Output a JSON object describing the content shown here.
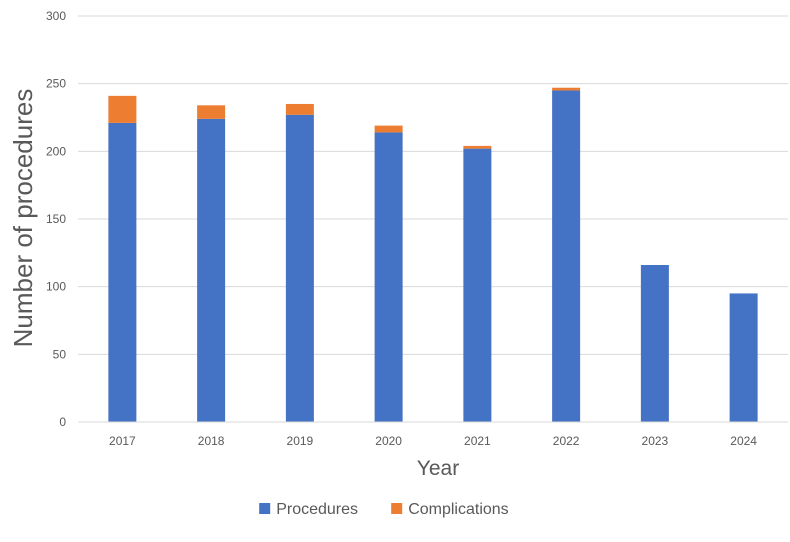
{
  "chart_data": {
    "type": "bar",
    "stacked": true,
    "title": "",
    "xlabel": "Year",
    "ylabel": "Number of procedures",
    "categories": [
      "2017",
      "2018",
      "2019",
      "2020",
      "2021",
      "2022",
      "2023",
      "2024"
    ],
    "series": [
      {
        "name": "Procedures",
        "color": "#4472C4",
        "values": [
          221,
          224,
          227,
          214,
          202,
          245,
          116,
          95
        ]
      },
      {
        "name": "Complications",
        "color": "#ED7D31",
        "values": [
          20,
          10,
          8,
          5,
          2,
          2,
          0,
          0
        ]
      }
    ],
    "ylim": [
      0,
      300
    ],
    "yticks": [
      0,
      50,
      100,
      150,
      200,
      250,
      300
    ],
    "grid": true,
    "legend": "bottom"
  }
}
